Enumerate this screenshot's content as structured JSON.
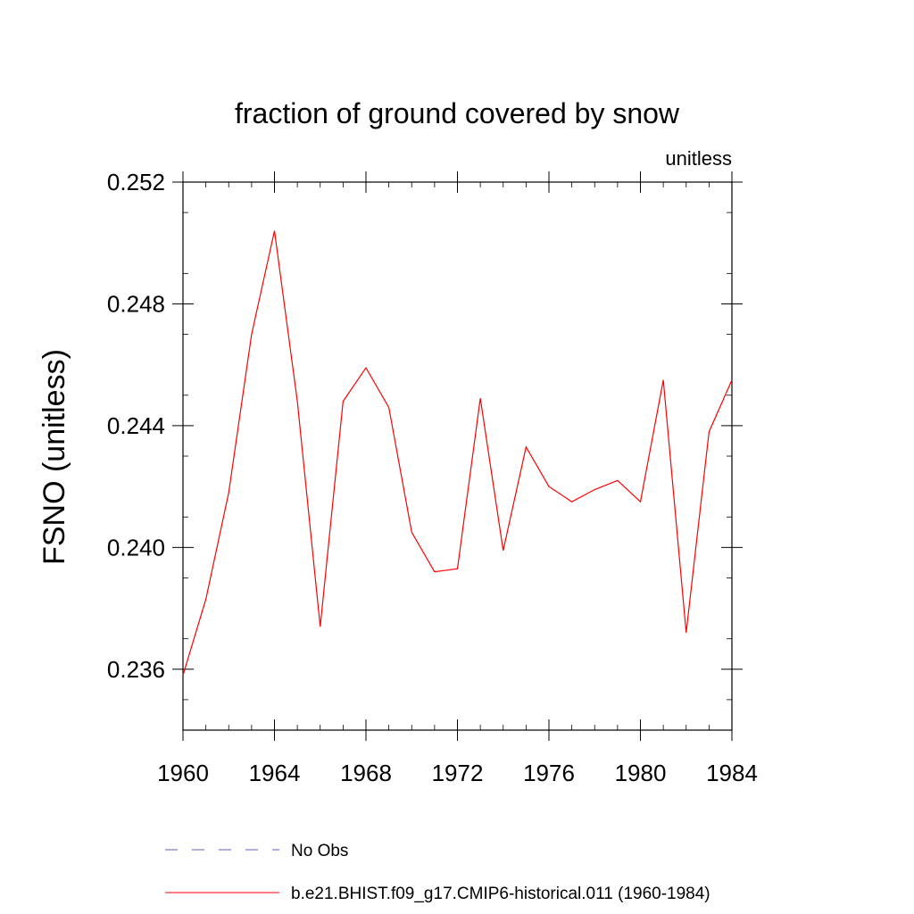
{
  "chart_data": {
    "type": "line",
    "title": "fraction of ground covered by snow",
    "units_label": "unitless",
    "ylabel": "FSNO  (unitless)",
    "xlabel": "",
    "xlim": [
      1960,
      1984
    ],
    "ylim": [
      0.234,
      0.252
    ],
    "x_ticks": [
      {
        "value": 1960,
        "label": "1960"
      },
      {
        "value": 1964,
        "label": "1964"
      },
      {
        "value": 1968,
        "label": "1968"
      },
      {
        "value": 1972,
        "label": "1972"
      },
      {
        "value": 1976,
        "label": "1976"
      },
      {
        "value": 1980,
        "label": "1980"
      },
      {
        "value": 1984,
        "label": "1984"
      }
    ],
    "y_ticks": [
      {
        "value": 0.236,
        "label": "0.236"
      },
      {
        "value": 0.24,
        "label": "0.240"
      },
      {
        "value": 0.244,
        "label": "0.244"
      },
      {
        "value": 0.248,
        "label": "0.248"
      },
      {
        "value": 0.252,
        "label": "0.252"
      }
    ],
    "grid": false,
    "series": [
      {
        "name": "b.e21.BHIST.f09_g17.CMIP6-historical.011 (1960-1984)",
        "color": "#ff0000",
        "style": "solid",
        "x": [
          1960,
          1961,
          1962,
          1963,
          1964,
          1965,
          1966,
          1967,
          1968,
          1969,
          1970,
          1971,
          1972,
          1973,
          1974,
          1975,
          1976,
          1977,
          1978,
          1979,
          1980,
          1981,
          1982,
          1983,
          1984
        ],
        "y": [
          0.2358,
          0.2383,
          0.2418,
          0.247,
          0.2504,
          0.2448,
          0.2374,
          0.2448,
          0.2459,
          0.2446,
          0.2405,
          0.2392,
          0.2393,
          0.2449,
          0.2399,
          0.2433,
          0.242,
          0.2415,
          0.2419,
          0.2422,
          0.2415,
          0.2455,
          0.2372,
          0.2438,
          0.2455
        ]
      }
    ],
    "legend": {
      "placement": "bottom",
      "entries": [
        {
          "label": "No Obs",
          "color": "#6a5acd",
          "style": "dashed"
        },
        {
          "label": "b.e21.BHIST.f09_g17.CMIP6-historical.011 (1960-1984)",
          "color": "#ff0000",
          "style": "solid"
        }
      ]
    }
  }
}
